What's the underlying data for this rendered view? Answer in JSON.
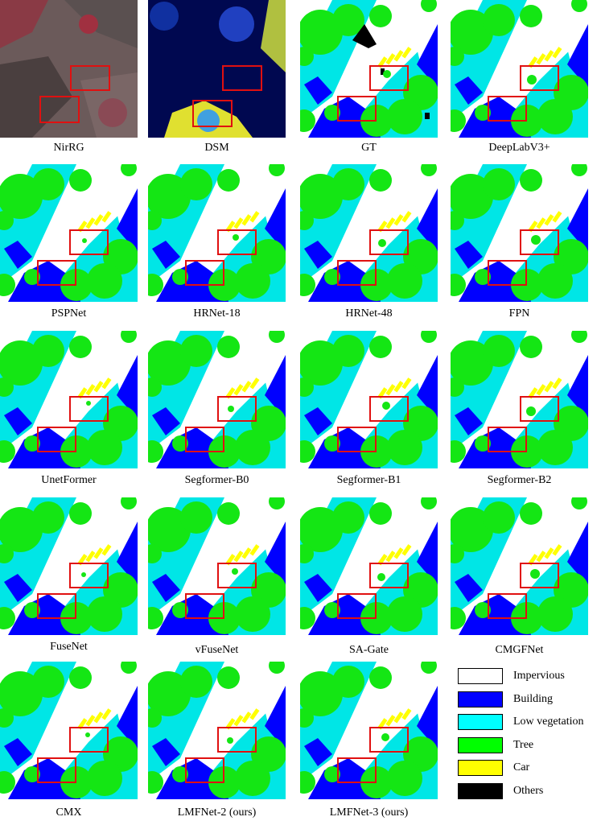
{
  "panels": [
    {
      "caption": "NirRG",
      "type": "nirrg"
    },
    {
      "caption": "DSM",
      "type": "dsm"
    },
    {
      "caption": "GT",
      "type": "gt"
    },
    {
      "caption": "DeepLabV3+",
      "type": "pred"
    },
    {
      "caption": "PSPNet",
      "type": "pred"
    },
    {
      "caption": "HRNet-18",
      "type": "pred"
    },
    {
      "caption": "HRNet-48",
      "type": "pred"
    },
    {
      "caption": "FPN",
      "type": "pred"
    },
    {
      "caption": "UnetFormer",
      "type": "pred"
    },
    {
      "caption": "Segformer-B0",
      "type": "pred"
    },
    {
      "caption": "Segformer-B1",
      "type": "pred"
    },
    {
      "caption": "Segformer-B2",
      "type": "pred"
    },
    {
      "caption": "FuseNet",
      "type": "pred"
    },
    {
      "caption": "vFuseNet",
      "type": "pred"
    },
    {
      "caption": "SA-Gate",
      "type": "pred"
    },
    {
      "caption": "CMGFNet",
      "type": "pred"
    },
    {
      "caption": "CMX",
      "type": "pred"
    },
    {
      "caption": "LMFNet-2 (ours)",
      "type": "pred"
    },
    {
      "caption": "LMFNet-3 (ours)",
      "type": "pred"
    }
  ],
  "legend": [
    {
      "label": "Impervious",
      "color": "#ffffff"
    },
    {
      "label": "Building",
      "color": "#0000ff"
    },
    {
      "label": "Low vegetation",
      "color": "#00ffff"
    },
    {
      "label": "Tree",
      "color": "#00ff00"
    },
    {
      "label": "Car",
      "color": "#ffff00"
    },
    {
      "label": "Others",
      "color": "#000000"
    }
  ],
  "colors": {
    "impervious": "#ffffff",
    "building": "#0000ff",
    "low_vegetation": "#00e6e6",
    "tree": "#14e614",
    "car": "#ffff00",
    "others": "#000000",
    "highlight_box": "#e01010"
  }
}
